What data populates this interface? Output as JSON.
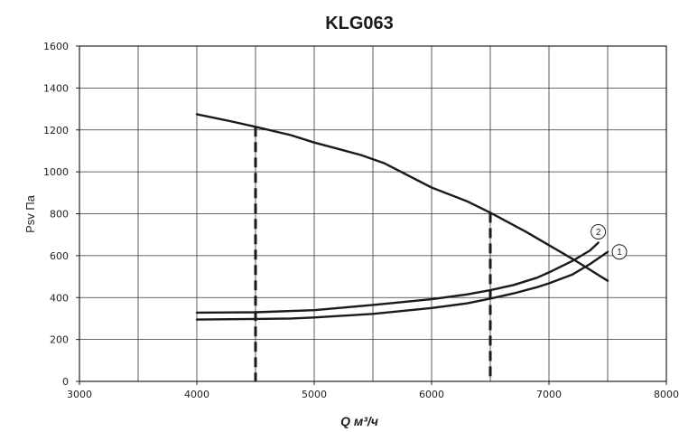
{
  "chart_data": {
    "type": "line",
    "title": "KLG063",
    "xlabel": "Q м³/ч",
    "ylabel": "Psv Па",
    "xlim": [
      3000,
      8000
    ],
    "ylim": [
      0,
      1600
    ],
    "x_ticks": [
      3000,
      4000,
      5000,
      6000,
      7000,
      8000
    ],
    "y_ticks": [
      0,
      200,
      400,
      600,
      800,
      1000,
      1200,
      1400,
      1600
    ],
    "grid": true,
    "series": [
      {
        "id": "fan-curve",
        "points": [
          [
            4000,
            1275
          ],
          [
            4300,
            1240
          ],
          [
            4500,
            1215
          ],
          [
            4800,
            1175
          ],
          [
            5000,
            1140
          ],
          [
            5400,
            1080
          ],
          [
            5600,
            1040
          ],
          [
            6000,
            925
          ],
          [
            6300,
            860
          ],
          [
            6500,
            805
          ],
          [
            6800,
            715
          ],
          [
            7000,
            650
          ],
          [
            7200,
            585
          ],
          [
            7500,
            480
          ]
        ]
      },
      {
        "id": "system-curve-1",
        "marker": "1",
        "points": [
          [
            4000,
            295
          ],
          [
            4500,
            298
          ],
          [
            4800,
            300
          ],
          [
            5000,
            305
          ],
          [
            5500,
            322
          ],
          [
            6000,
            350
          ],
          [
            6300,
            372
          ],
          [
            6500,
            395
          ],
          [
            6700,
            420
          ],
          [
            6900,
            450
          ],
          [
            7000,
            468
          ],
          [
            7200,
            510
          ],
          [
            7350,
            560
          ],
          [
            7500,
            618
          ]
        ]
      },
      {
        "id": "system-curve-2",
        "marker": "2",
        "points": [
          [
            4000,
            328
          ],
          [
            4500,
            330
          ],
          [
            5000,
            340
          ],
          [
            5500,
            365
          ],
          [
            6000,
            392
          ],
          [
            6300,
            415
          ],
          [
            6500,
            435
          ],
          [
            6700,
            460
          ],
          [
            6900,
            495
          ],
          [
            7000,
            520
          ],
          [
            7200,
            575
          ],
          [
            7350,
            625
          ],
          [
            7420,
            662
          ]
        ]
      }
    ],
    "vertical_markers": [
      4500,
      6500
    ]
  }
}
